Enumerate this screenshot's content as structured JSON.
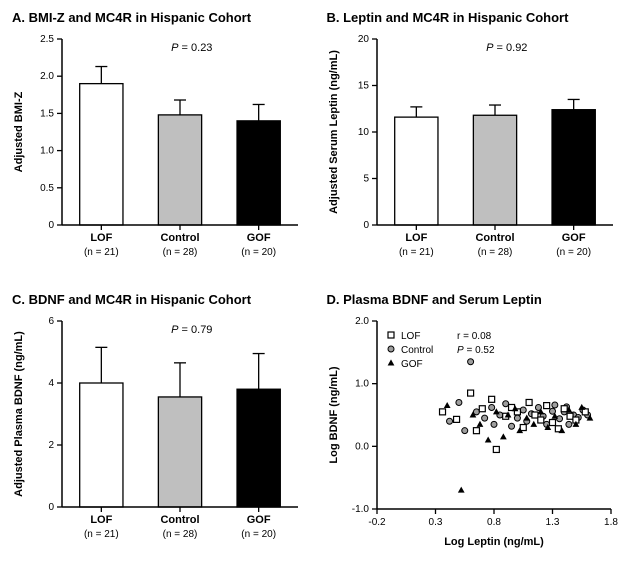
{
  "panelA": {
    "type": "bar",
    "title": "A. BMI-Z and MC4R in Hispanic Cohort",
    "ylabel": "Adjusted BMI-Z",
    "p_text": "P = 0.23",
    "p_italic_prefix": "P",
    "ylim": [
      0,
      2.5
    ],
    "yticks": [
      0,
      0.5,
      1.0,
      1.5,
      2.0,
      2.5
    ],
    "ytick_labels": [
      "0",
      "0.5",
      "1.0",
      "1.5",
      "2.0",
      "2.5"
    ],
    "categories": [
      "LOF",
      "Control",
      "GOF"
    ],
    "n_labels": [
      "(n = 21)",
      "(n = 28)",
      "(n = 20)"
    ],
    "values": [
      1.9,
      1.48,
      1.4
    ],
    "errors": [
      0.23,
      0.2,
      0.22
    ],
    "bar_fill": [
      "#ffffff",
      "#bfbfbf",
      "#000000"
    ],
    "bar_stroke": "#000000",
    "bar_width": 0.55,
    "label_fontsize": 11,
    "tick_fontsize": 10,
    "title_fontsize": 13,
    "axis_color": "#000000",
    "background_color": "#ffffff"
  },
  "panelB": {
    "type": "bar",
    "title": "B. Leptin and MC4R in Hispanic Cohort",
    "ylabel": "Adjusted Serum Leptin (ng/mL)",
    "p_text": "P = 0.92",
    "ylim": [
      0,
      20
    ],
    "yticks": [
      0,
      5,
      10,
      15,
      20
    ],
    "ytick_labels": [
      "0",
      "5",
      "10",
      "15",
      "20"
    ],
    "categories": [
      "LOF",
      "Control",
      "GOF"
    ],
    "n_labels": [
      "(n = 21)",
      "(n = 28)",
      "(n = 20)"
    ],
    "values": [
      11.6,
      11.8,
      12.4
    ],
    "errors": [
      1.1,
      1.1,
      1.1
    ],
    "bar_fill": [
      "#ffffff",
      "#bfbfbf",
      "#000000"
    ],
    "bar_stroke": "#000000",
    "bar_width": 0.55,
    "label_fontsize": 11,
    "tick_fontsize": 10,
    "title_fontsize": 13,
    "axis_color": "#000000",
    "background_color": "#ffffff"
  },
  "panelC": {
    "type": "bar",
    "title": "C. BDNF and MC4R in Hispanic Cohort",
    "ylabel": "Adjusted Plasma BDNF (ng/mL)",
    "p_text": "P = 0.79",
    "ylim": [
      0,
      6
    ],
    "yticks": [
      0,
      2,
      4,
      6
    ],
    "ytick_labels": [
      "0",
      "2",
      "4",
      "6"
    ],
    "categories": [
      "LOF",
      "Control",
      "GOF"
    ],
    "n_labels": [
      "(n = 21)",
      "(n = 28)",
      "(n = 20)"
    ],
    "values": [
      4.0,
      3.55,
      3.8
    ],
    "errors": [
      1.15,
      1.1,
      1.15
    ],
    "bar_fill": [
      "#ffffff",
      "#bfbfbf",
      "#000000"
    ],
    "bar_stroke": "#000000",
    "bar_width": 0.55,
    "label_fontsize": 11,
    "tick_fontsize": 10,
    "title_fontsize": 13,
    "axis_color": "#000000",
    "background_color": "#ffffff"
  },
  "panelD": {
    "type": "scatter",
    "title": "D. Plasma BDNF and Serum Leptin",
    "xlabel": "Log Leptin (ng/mL)",
    "ylabel": "Log  BDNF (ng/mL)",
    "r_text": "r = 0.08",
    "p_text": "P = 0.52",
    "xlim": [
      -0.2,
      1.8
    ],
    "xticks": [
      -0.2,
      0.3,
      0.8,
      1.3,
      1.8
    ],
    "xtick_labels": [
      "-0.2",
      "0.3",
      "0.8",
      "1.3",
      "1.8"
    ],
    "ylim": [
      -1.0,
      2.0
    ],
    "yticks": [
      -1.0,
      0.0,
      1.0,
      2.0
    ],
    "ytick_labels": [
      "-1.0",
      "0.0",
      "1.0",
      "2.0"
    ],
    "marker_size": 6,
    "legend": {
      "labels": [
        "LOF",
        "Control",
        "GOF"
      ],
      "markers": [
        "square-open",
        "circle-grey",
        "triangle-black"
      ]
    },
    "series": {
      "LOF": {
        "marker": "square-open",
        "points": [
          [
            0.36,
            0.55
          ],
          [
            0.48,
            0.43
          ],
          [
            0.6,
            0.85
          ],
          [
            0.65,
            0.25
          ],
          [
            0.7,
            0.6
          ],
          [
            0.78,
            0.75
          ],
          [
            0.82,
            -0.05
          ],
          [
            0.9,
            0.48
          ],
          [
            0.95,
            0.62
          ],
          [
            1.0,
            0.55
          ],
          [
            1.05,
            0.3
          ],
          [
            1.1,
            0.7
          ],
          [
            1.15,
            0.5
          ],
          [
            1.2,
            0.42
          ],
          [
            1.25,
            0.65
          ],
          [
            1.3,
            0.38
          ],
          [
            1.35,
            0.28
          ],
          [
            1.4,
            0.6
          ],
          [
            1.45,
            0.48
          ],
          [
            1.5,
            0.42
          ],
          [
            1.58,
            0.55
          ]
        ]
      },
      "Control": {
        "marker": "circle-grey",
        "points": [
          [
            0.42,
            0.4
          ],
          [
            0.5,
            0.7
          ],
          [
            0.55,
            0.25
          ],
          [
            0.6,
            1.35
          ],
          [
            0.65,
            0.55
          ],
          [
            0.72,
            0.45
          ],
          [
            0.78,
            0.62
          ],
          [
            0.8,
            0.35
          ],
          [
            0.85,
            0.5
          ],
          [
            0.9,
            0.68
          ],
          [
            0.95,
            0.32
          ],
          [
            1.0,
            0.45
          ],
          [
            1.05,
            0.58
          ],
          [
            1.08,
            0.4
          ],
          [
            1.12,
            0.52
          ],
          [
            1.18,
            0.62
          ],
          [
            1.22,
            0.48
          ],
          [
            1.25,
            0.35
          ],
          [
            1.3,
            0.56
          ],
          [
            1.32,
            0.66
          ],
          [
            1.36,
            0.44
          ],
          [
            1.4,
            0.55
          ],
          [
            1.42,
            0.63
          ],
          [
            1.44,
            0.35
          ],
          [
            1.48,
            0.5
          ],
          [
            1.52,
            0.46
          ],
          [
            1.56,
            0.58
          ],
          [
            1.6,
            0.5
          ]
        ]
      },
      "GOF": {
        "marker": "triangle-black",
        "points": [
          [
            0.4,
            0.65
          ],
          [
            0.52,
            -0.7
          ],
          [
            0.62,
            0.5
          ],
          [
            0.68,
            0.35
          ],
          [
            0.75,
            0.1
          ],
          [
            0.82,
            0.55
          ],
          [
            0.88,
            0.15
          ],
          [
            0.92,
            0.5
          ],
          [
            0.98,
            0.6
          ],
          [
            1.02,
            0.25
          ],
          [
            1.08,
            0.45
          ],
          [
            1.14,
            0.35
          ],
          [
            1.2,
            0.55
          ],
          [
            1.26,
            0.3
          ],
          [
            1.32,
            0.48
          ],
          [
            1.38,
            0.25
          ],
          [
            1.44,
            0.58
          ],
          [
            1.5,
            0.35
          ],
          [
            1.55,
            0.62
          ],
          [
            1.62,
            0.45
          ]
        ]
      }
    },
    "label_fontsize": 11,
    "tick_fontsize": 10,
    "title_fontsize": 13,
    "axis_color": "#000000",
    "background_color": "#ffffff",
    "colors": {
      "square_stroke": "#000000",
      "square_fill": "#ffffff",
      "circle_fill": "#9e9e9e",
      "circle_stroke": "#000000",
      "triangle_fill": "#000000"
    }
  }
}
